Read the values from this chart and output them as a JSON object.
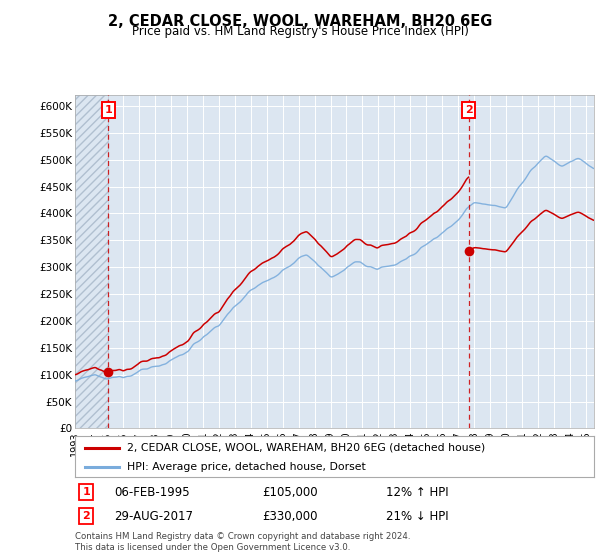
{
  "title": "2, CEDAR CLOSE, WOOL, WAREHAM, BH20 6EG",
  "subtitle": "Price paid vs. HM Land Registry's House Price Index (HPI)",
  "ylim": [
    0,
    620000
  ],
  "xlim_start": 1993.0,
  "xlim_end": 2025.5,
  "bg_color": "#dce6f1",
  "grid_color": "#ffffff",
  "red_line_color": "#cc0000",
  "blue_line_color": "#7aacdc",
  "sale1_x": 1995.09,
  "sale1_y": 105000,
  "sale1_label": "1",
  "sale2_x": 2017.65,
  "sale2_y": 330000,
  "sale2_label": "2",
  "legend_line1": "2, CEDAR CLOSE, WOOL, WAREHAM, BH20 6EG (detached house)",
  "legend_line2": "HPI: Average price, detached house, Dorset",
  "info1_num": "1",
  "info1_date": "06-FEB-1995",
  "info1_price": "£105,000",
  "info1_hpi": "12% ↑ HPI",
  "info2_num": "2",
  "info2_date": "29-AUG-2017",
  "info2_price": "£330,000",
  "info2_hpi": "21% ↓ HPI",
  "footer": "Contains HM Land Registry data © Crown copyright and database right 2024.\nThis data is licensed under the Open Government Licence v3.0."
}
